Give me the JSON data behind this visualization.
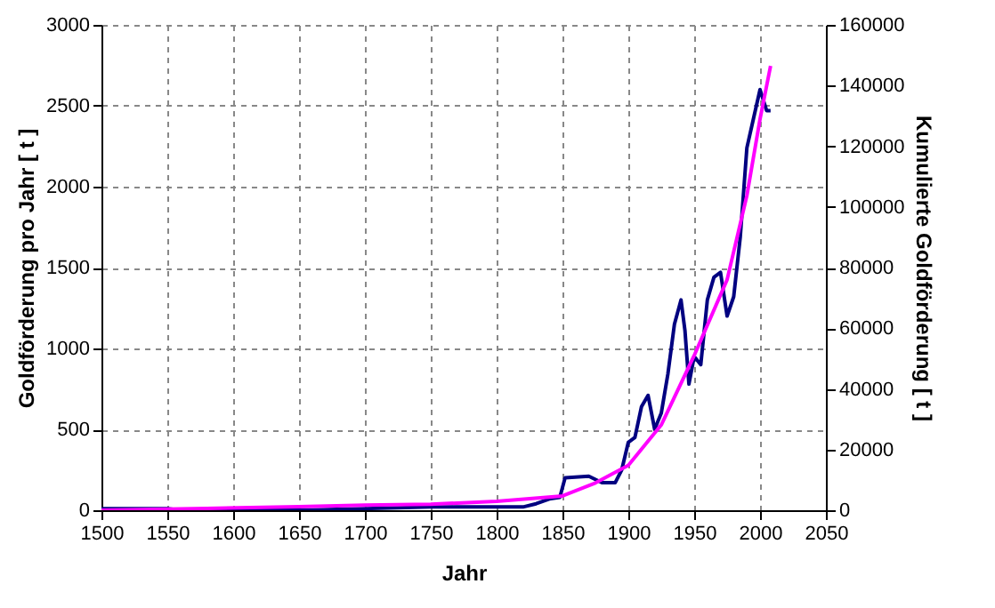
{
  "chart_data": {
    "type": "line",
    "xlabel": "Jahr",
    "ylabel": "Goldförderung pro Jahr [ t ]",
    "y2label": "Kumulierte Goldförderung [ t ]",
    "xlim": [
      1500,
      2050
    ],
    "xticks": [
      1500,
      1550,
      1600,
      1650,
      1700,
      1750,
      1800,
      1850,
      1900,
      1950,
      2000,
      2050
    ],
    "ylim": [
      0,
      3000
    ],
    "yticks": [
      0,
      500,
      1000,
      1500,
      2000,
      2500,
      3000
    ],
    "y2lim": [
      0,
      160000
    ],
    "y2ticks": [
      0,
      20000,
      40000,
      60000,
      80000,
      100000,
      120000,
      140000,
      160000
    ],
    "grid": true,
    "line_style": "solid",
    "marker": "none",
    "series": [
      {
        "color": "#000080",
        "x": [
          1500,
          1550,
          1560,
          1650,
          1700,
          1750,
          1800,
          1820,
          1830,
          1840,
          1848,
          1852,
          1870,
          1880,
          1890,
          1895,
          1900,
          1905,
          1910,
          1915,
          1920,
          1925,
          1930,
          1935,
          1940,
          1943,
          1946,
          1950,
          1955,
          1960,
          1965,
          1970,
          1975,
          1980,
          1985,
          1990,
          1995,
          2000,
          2005,
          2008
        ],
        "values": [
          10,
          10,
          0,
          0,
          10,
          20,
          20,
          20,
          40,
          70,
          80,
          200,
          210,
          170,
          170,
          250,
          420,
          450,
          640,
          710,
          500,
          600,
          840,
          1150,
          1300,
          1110,
          780,
          950,
          900,
          1300,
          1440,
          1470,
          1200,
          1320,
          1690,
          2240,
          2420,
          2600,
          2470,
          2470
        ]
      },
      {
        "color": "#ff00ff",
        "axis": "y2",
        "x": [
          1500,
          1580,
          1650,
          1700,
          1750,
          1800,
          1850,
          1875,
          1900,
          1925,
          1950,
          1975,
          1990,
          2000,
          2008
        ],
        "values": [
          0,
          600,
          1200,
          1700,
          2000,
          2900,
          4700,
          9000,
          14800,
          28100,
          51000,
          76000,
          103700,
          129000,
          146500
        ]
      }
    ]
  }
}
